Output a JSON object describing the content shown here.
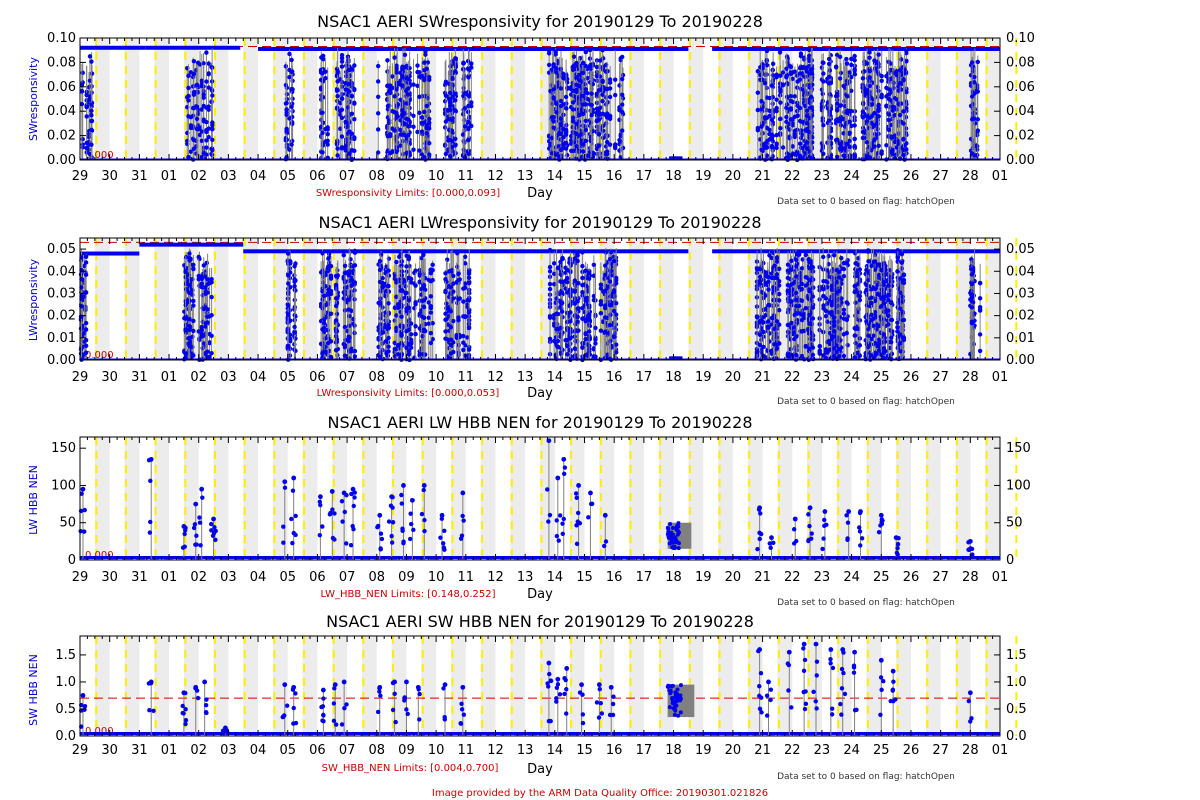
{
  "colors": {
    "data": "#0000ee",
    "flagged": "#808080",
    "limit": "#cc0000",
    "day_line": "#ffee00",
    "shade": "#ececec",
    "ylabel": "#0000cc"
  },
  "x_day_labels": [
    "29",
    "30",
    "31",
    "01",
    "02",
    "03",
    "04",
    "05",
    "06",
    "07",
    "08",
    "09",
    "10",
    "11",
    "12",
    "13",
    "14",
    "15",
    "16",
    "17",
    "18",
    "19",
    "20",
    "21",
    "22",
    "23",
    "24",
    "25",
    "26",
    "27",
    "28",
    "01"
  ],
  "footer": "Image provided by the ARM Data Quality Office: 20190301.021826",
  "chart_data": [
    {
      "type": "scatter",
      "title": "NSAC1 AERI SWresponsivity for 20190129 To 20190228",
      "ylabel": "SWresponsivity",
      "xlabel": "Day",
      "ylim": [
        0,
        0.1
      ],
      "yticks": [
        0.0,
        0.02,
        0.04,
        0.06,
        0.08,
        0.1
      ],
      "ytick_labels": [
        "0.00",
        "0.02",
        "0.04",
        "0.06",
        "0.08",
        "0.10"
      ],
      "limits": [
        0.0,
        0.093
      ],
      "limit_text": "SWresponsivity Limits: [0.000,0.093]",
      "note": "Data set to 0 based on flag: hatchOpen",
      "lo_label": "0.000",
      "grid": false,
      "baseline_segments": [
        {
          "x0": 0.0,
          "x1": 2.2,
          "y": 0.092
        },
        {
          "x0": 2.2,
          "x1": 5.4,
          "y": 0.092
        },
        {
          "x0": 6.0,
          "x1": 12.5,
          "y": 0.091
        },
        {
          "x0": 12.5,
          "x1": 20.5,
          "y": 0.091
        },
        {
          "x0": 21.3,
          "x1": 31.0,
          "y": 0.091
        }
      ],
      "active_days": [
        0,
        3.5,
        4.0,
        6.9,
        8.1,
        8.6,
        8.9,
        10.0,
        10.6,
        11.0,
        11.5,
        12.3,
        12.9,
        15.8,
        16.2,
        16.6,
        16.9,
        17.4,
        17.8,
        22.8,
        23.3,
        23.8,
        24.1,
        24.4,
        24.9,
        25.3,
        25.7,
        26.1,
        26.6,
        27.0,
        27.5,
        30.0
      ],
      "dip_days": [
        19.85,
        20.05
      ]
    },
    {
      "type": "scatter",
      "title": "NSAC1 AERI LWresponsivity for 20190129 To 20190228",
      "ylabel": "LWresponsivity",
      "xlabel": "Day",
      "ylim": [
        0,
        0.055
      ],
      "yticks": [
        0.0,
        0.01,
        0.02,
        0.03,
        0.04,
        0.05
      ],
      "ytick_labels": [
        "0.00",
        "0.01",
        "0.02",
        "0.03",
        "0.04",
        "0.05"
      ],
      "limits": [
        0.0,
        0.053
      ],
      "limit_text": "LWresponsivity Limits: [0.000,0.053]",
      "note": "Data set to 0 based on flag: hatchOpen",
      "lo_label": "0.000",
      "grid": false,
      "baseline_segments": [
        {
          "x0": 0.0,
          "x1": 2.0,
          "y": 0.048
        },
        {
          "x0": 2.0,
          "x1": 5.5,
          "y": 0.052
        },
        {
          "x0": 5.5,
          "x1": 12.5,
          "y": 0.049
        },
        {
          "x0": 12.5,
          "x1": 20.5,
          "y": 0.049
        },
        {
          "x0": 21.3,
          "x1": 31.0,
          "y": 0.049
        }
      ],
      "active_days": [
        0,
        3.5,
        4.0,
        6.9,
        8.1,
        8.6,
        8.9,
        10.0,
        10.6,
        11.0,
        11.5,
        12.3,
        12.9,
        15.8,
        16.2,
        16.6,
        16.9,
        17.4,
        17.8,
        22.8,
        23.3,
        23.8,
        24.1,
        24.4,
        24.9,
        25.3,
        25.7,
        26.1,
        26.6,
        27.0,
        27.5,
        30.0
      ],
      "dip_days": [
        19.85,
        20.05
      ]
    },
    {
      "type": "scatter",
      "title": "NSAC1 AERI LW HBB NEN for 20190129 To 20190228",
      "ylabel": "LW HBB NEN",
      "xlabel": "Day",
      "ylim": [
        0,
        165
      ],
      "yticks": [
        0,
        50,
        100,
        150
      ],
      "ytick_labels": [
        "0",
        "50",
        "100",
        "150"
      ],
      "limits": [
        0.148,
        0.252
      ],
      "limit_text": "LW_HBB_NEN Limits: [0.148,0.252]",
      "note": "Data set to 0 based on flag: hatchOpen",
      "lo_label": "0.000",
      "grid": false,
      "spikes": [
        [
          0.1,
          95
        ],
        [
          2.4,
          135
        ],
        [
          3.5,
          45
        ],
        [
          3.9,
          75
        ],
        [
          4.1,
          95
        ],
        [
          4.5,
          55
        ],
        [
          6.9,
          105
        ],
        [
          7.2,
          110
        ],
        [
          8.1,
          85
        ],
        [
          8.5,
          92
        ],
        [
          8.9,
          90
        ],
        [
          9.2,
          95
        ],
        [
          10.1,
          60
        ],
        [
          10.5,
          85
        ],
        [
          10.9,
          100
        ],
        [
          11.2,
          80
        ],
        [
          11.6,
          100
        ],
        [
          12.2,
          60
        ],
        [
          12.9,
          90
        ],
        [
          15.8,
          160
        ],
        [
          16.1,
          110
        ],
        [
          16.3,
          135
        ],
        [
          16.8,
          100
        ],
        [
          17.2,
          90
        ],
        [
          17.7,
          60
        ],
        [
          22.9,
          70
        ],
        [
          23.3,
          30
        ],
        [
          24.1,
          55
        ],
        [
          24.6,
          70
        ],
        [
          25.1,
          65
        ],
        [
          25.9,
          65
        ],
        [
          26.3,
          65
        ],
        [
          27.0,
          60
        ],
        [
          27.5,
          30
        ],
        [
          30.0,
          25
        ]
      ],
      "noise_block": {
        "x0": 19.8,
        "x1": 20.6,
        "lo": 15,
        "hi": 50
      }
    },
    {
      "type": "scatter",
      "title": "NSAC1 AERI SW HBB NEN for 20190129 To 20190228",
      "ylabel": "SW HBB NEN",
      "xlabel": "Day",
      "ylim": [
        0,
        1.85
      ],
      "yticks": [
        0.0,
        0.5,
        1.0,
        1.5
      ],
      "ytick_labels": [
        "0.0",
        "0.5",
        "1.0",
        "1.5"
      ],
      "limits": [
        0.004,
        0.7
      ],
      "limit_text": "SW_HBB_NEN Limits: [0.004,0.700]",
      "note": "Data set to 0 based on flag: hatchOpen",
      "lo_label": "0.000",
      "grid": false,
      "spikes": [
        [
          0.1,
          0.75
        ],
        [
          2.4,
          1.0
        ],
        [
          3.5,
          0.8
        ],
        [
          3.9,
          0.9
        ],
        [
          4.2,
          1.0
        ],
        [
          4.9,
          0.15
        ],
        [
          6.9,
          0.95
        ],
        [
          7.2,
          0.9
        ],
        [
          8.2,
          0.85
        ],
        [
          8.6,
          0.95
        ],
        [
          8.9,
          1.0
        ],
        [
          10.1,
          0.9
        ],
        [
          10.6,
          1.0
        ],
        [
          11.0,
          1.0
        ],
        [
          11.4,
          0.9
        ],
        [
          12.3,
          0.95
        ],
        [
          12.9,
          0.9
        ],
        [
          15.8,
          1.35
        ],
        [
          16.1,
          1.05
        ],
        [
          16.4,
          1.25
        ],
        [
          16.9,
          0.95
        ],
        [
          17.5,
          0.95
        ],
        [
          17.9,
          0.9
        ],
        [
          22.9,
          1.6
        ],
        [
          23.2,
          1.0
        ],
        [
          23.9,
          1.55
        ],
        [
          24.4,
          1.7
        ],
        [
          24.8,
          1.7
        ],
        [
          25.3,
          1.6
        ],
        [
          25.7,
          1.6
        ],
        [
          26.1,
          1.55
        ],
        [
          27.0,
          1.4
        ],
        [
          27.4,
          1.2
        ],
        [
          30.0,
          0.8
        ]
      ],
      "noise_block": {
        "x0": 19.8,
        "x1": 20.7,
        "lo": 0.35,
        "hi": 0.95
      }
    }
  ]
}
